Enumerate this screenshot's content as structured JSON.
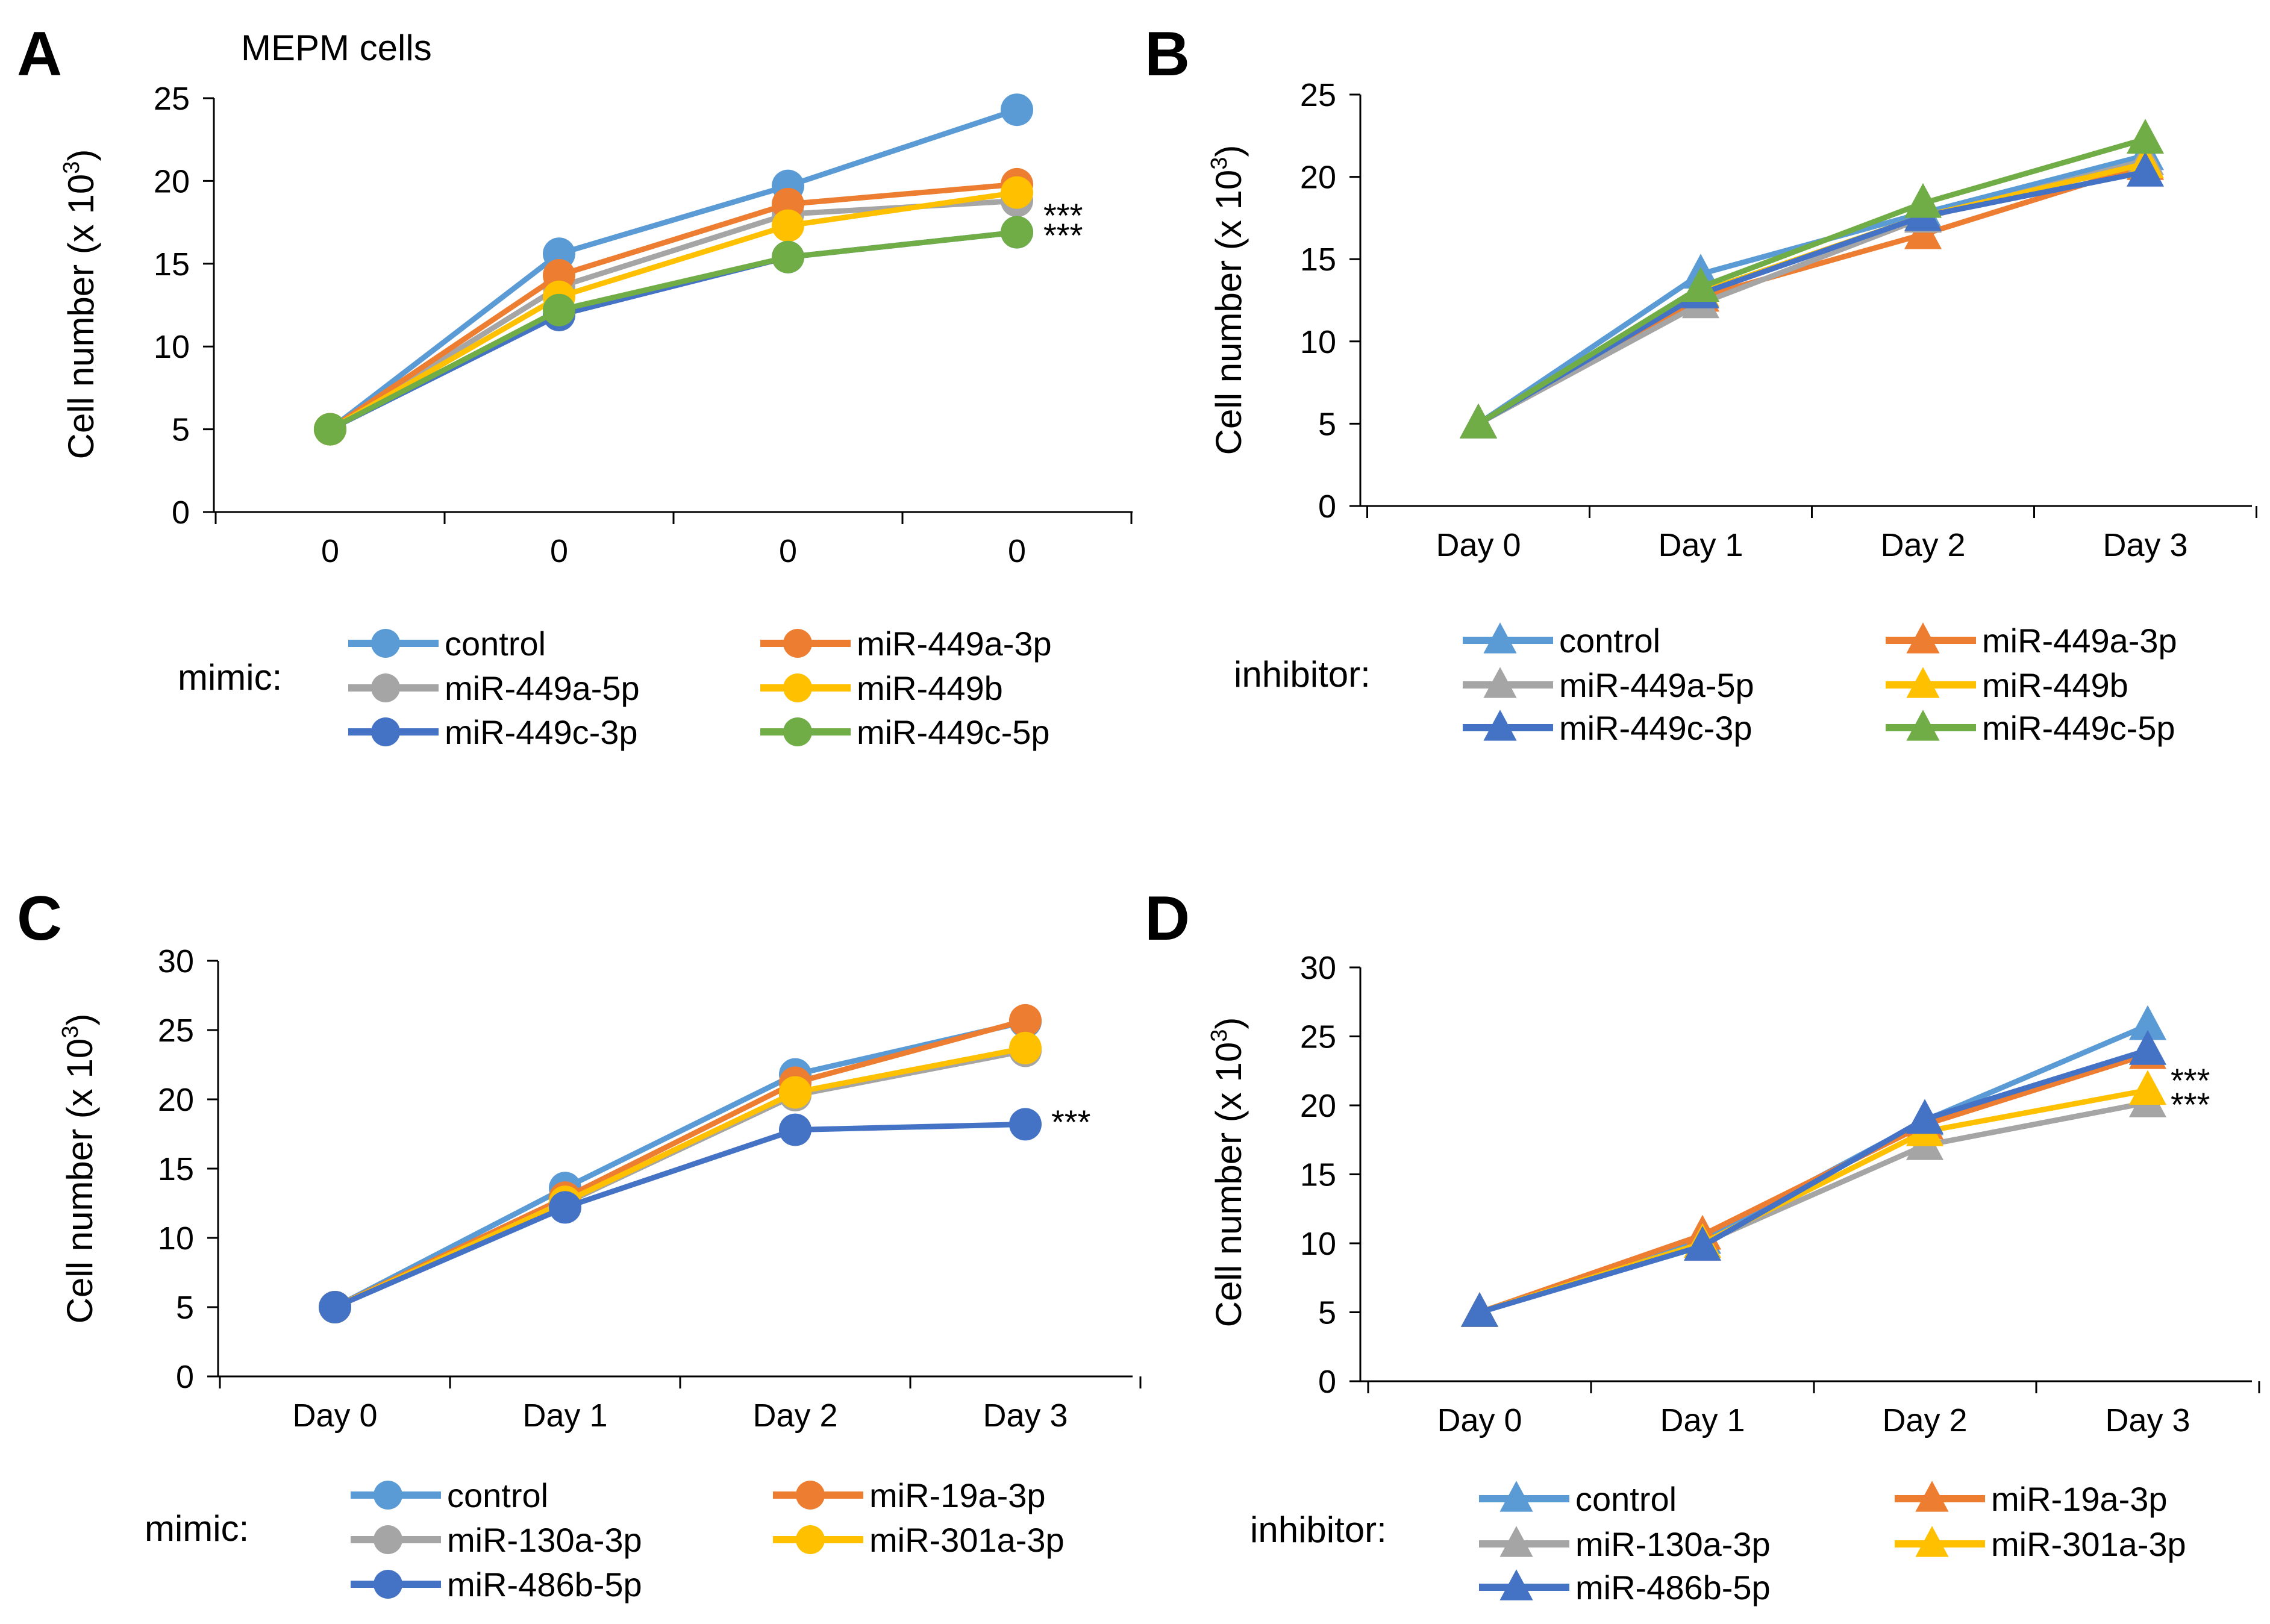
{
  "colors": {
    "control": "#5B9BD5",
    "orange": "#ED7D31",
    "gray": "#A5A5A5",
    "gold": "#FFC000",
    "blue": "#4472C4",
    "green": "#70AD47",
    "axis": "#000000"
  },
  "chart_data": [
    {
      "type": "line",
      "panel": "A",
      "title": "MEPM cells",
      "ylabel": "Cell number (x 10",
      "ylabel_sup": "3",
      "ylabel_close": ")",
      "ylim": [
        0,
        25
      ],
      "yticks": [
        "0",
        "5",
        "10",
        "15",
        "20",
        "25"
      ],
      "categories": [
        "0",
        "0",
        "0",
        "0"
      ],
      "marker": "circle",
      "legend_prefix": "mimic:",
      "series": [
        {
          "name": "control",
          "values": [
            5.0,
            15.6,
            19.7,
            24.3
          ]
        },
        {
          "name": "miR-449a-3p",
          "values": [
            5.0,
            14.3,
            18.6,
            19.8
          ]
        },
        {
          "name": "miR-449a-5p",
          "values": [
            5.0,
            13.6,
            18.0,
            18.8
          ]
        },
        {
          "name": "miR-449b",
          "values": [
            5.0,
            13.0,
            17.3,
            19.3
          ]
        },
        {
          "name": "miR-449c-3p",
          "values": [
            5.0,
            11.9,
            15.4,
            16.9
          ]
        },
        {
          "name": "miR-449c-5p",
          "values": [
            5.0,
            12.2,
            15.4,
            16.9
          ]
        }
      ],
      "annotations": [
        "***",
        "***"
      ]
    },
    {
      "type": "line",
      "panel": "B",
      "title": "",
      "ylabel": "Cell number (x 10",
      "ylabel_sup": "3",
      "ylabel_close": ")",
      "ylim": [
        0,
        25
      ],
      "yticks": [
        "0",
        "5",
        "10",
        "15",
        "20",
        "25"
      ],
      "categories": [
        "Day 0",
        "Day 1",
        "Day 2",
        "Day 3"
      ],
      "marker": "triangle",
      "legend_prefix": "inhibitor:",
      "series": [
        {
          "name": "control",
          "values": [
            5.0,
            14.1,
            17.8,
            21.3
          ]
        },
        {
          "name": "miR-449a-3p",
          "values": [
            5.0,
            12.7,
            16.5,
            20.7
          ]
        },
        {
          "name": "miR-449a-5p",
          "values": [
            5.0,
            12.3,
            17.5,
            21.0
          ]
        },
        {
          "name": "miR-449b",
          "values": [
            5.0,
            13.0,
            17.6,
            20.8
          ]
        },
        {
          "name": "miR-449c-3p",
          "values": [
            5.0,
            12.9,
            17.6,
            20.3
          ]
        },
        {
          "name": "miR-449c-5p",
          "values": [
            5.0,
            13.3,
            18.4,
            22.3
          ]
        }
      ],
      "annotations": []
    },
    {
      "type": "line",
      "panel": "C",
      "title": "",
      "ylabel": "Cell number (x 10",
      "ylabel_sup": "3",
      "ylabel_close": ")",
      "ylim": [
        0,
        30
      ],
      "yticks": [
        "0",
        "5",
        "10",
        "15",
        "20",
        "25",
        "30"
      ],
      "categories": [
        "Day 0",
        "Day 1",
        "Day 2",
        "Day 3"
      ],
      "marker": "circle",
      "legend_prefix": "mimic:",
      "series": [
        {
          "name": "control",
          "values": [
            5.0,
            13.6,
            21.8,
            25.6
          ]
        },
        {
          "name": "miR-19a-3p",
          "values": [
            5.0,
            12.9,
            21.2,
            25.7
          ]
        },
        {
          "name": "miR-130a-3p",
          "values": [
            5.0,
            12.5,
            20.3,
            23.5
          ]
        },
        {
          "name": "miR-301a-3p",
          "values": [
            5.0,
            12.6,
            20.5,
            23.7
          ]
        },
        {
          "name": "miR-486b-5p",
          "values": [
            5.0,
            12.2,
            17.8,
            18.2
          ]
        }
      ],
      "annotations": [
        "***"
      ]
    },
    {
      "type": "line",
      "panel": "D",
      "title": "",
      "ylabel": "Cell number (x 10",
      "ylabel_sup": "3",
      "ylabel_close": ")",
      "ylim": [
        0,
        30
      ],
      "yticks": [
        "0",
        "5",
        "10",
        "15",
        "20",
        "25",
        "30"
      ],
      "categories": [
        "Day 0",
        "Day 1",
        "Day 2",
        "Day 3"
      ],
      "marker": "triangle",
      "legend_prefix": "inhibitor:",
      "series": [
        {
          "name": "control",
          "values": [
            5.0,
            10.3,
            18.9,
            25.8
          ]
        },
        {
          "name": "miR-19a-3p",
          "values": [
            5.0,
            10.6,
            18.6,
            23.7
          ]
        },
        {
          "name": "miR-130a-3p",
          "values": [
            5.0,
            10.0,
            17.1,
            20.2
          ]
        },
        {
          "name": "miR-301a-3p",
          "values": [
            5.0,
            10.0,
            18.1,
            21.1
          ]
        },
        {
          "name": "miR-486b-5p",
          "values": [
            5.0,
            9.8,
            19.0,
            24.0
          ]
        }
      ],
      "annotations": [
        "***",
        "***"
      ]
    }
  ]
}
